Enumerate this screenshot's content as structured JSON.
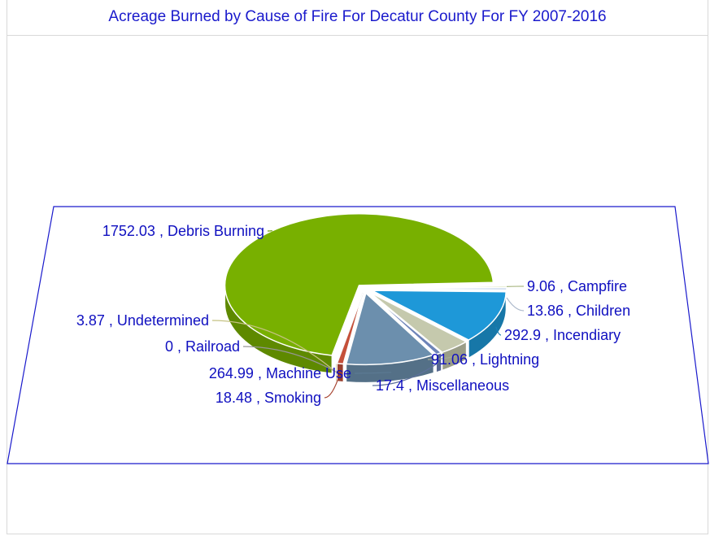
{
  "chart_data": {
    "type": "pie",
    "title": "Acreage Burned by Cause of Fire For Decatur County For FY 2007-2016",
    "label_separator": " , ",
    "slices": [
      {
        "name": "Campfire",
        "value": 9.06,
        "color": "#c8d89a"
      },
      {
        "name": "Children",
        "value": 13.86,
        "color": "#c9d9ee"
      },
      {
        "name": "Incendiary",
        "value": 292.9,
        "color": "#1e98d8"
      },
      {
        "name": "Lightning",
        "value": 91.06,
        "color": "#c5c9ad"
      },
      {
        "name": "Miscellaneous",
        "value": 17.4,
        "color": "#6e84b8"
      },
      {
        "name": "Machine Use",
        "value": 264.99,
        "color": "#6c8fad"
      },
      {
        "name": "Smoking",
        "value": 18.48,
        "color": "#c5503a"
      },
      {
        "name": "Railroad",
        "value": 0,
        "color": "#b0b0b0"
      },
      {
        "name": "Undetermined",
        "value": 3.87,
        "color": "#e8e49a"
      },
      {
        "name": "Debris Burning",
        "value": 1752.03,
        "color": "#78b000"
      }
    ]
  }
}
